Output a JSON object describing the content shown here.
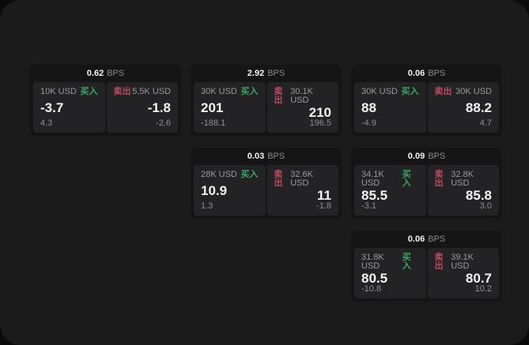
{
  "labels": {
    "buy": "买入",
    "sell": "卖出",
    "bps": "BPS"
  },
  "colors": {
    "buy": "#3aa763",
    "sell": "#bd4a62",
    "panel_bg": "#1b1b1c",
    "card_bg": "#151516",
    "tile_bg": "#232325",
    "value_text": "#f5f5f5",
    "muted_text": "#8f8f8f"
  },
  "cards": [
    {
      "bps": "0.62",
      "buy": {
        "size": "10K USD",
        "value": "-3.7",
        "delta": "4.3"
      },
      "sell": {
        "size": "5.5K USD",
        "value": "-1.8",
        "delta": "-2.6"
      }
    },
    {
      "bps": "2.92",
      "buy": {
        "size": "30K USD",
        "value": "201",
        "delta": "-188.1"
      },
      "sell": {
        "size": "30.1K USD",
        "value": "210",
        "delta": "196.5"
      }
    },
    {
      "bps": "0.06",
      "buy": {
        "size": "30K USD",
        "value": "88",
        "delta": "-4.9"
      },
      "sell": {
        "size": "30K USD",
        "value": "88.2",
        "delta": "4.7"
      }
    },
    {
      "bps": "0.03",
      "buy": {
        "size": "28K USD",
        "value": "10.9",
        "delta": "1.3"
      },
      "sell": {
        "size": "32.6K USD",
        "value": "11",
        "delta": "-1.8"
      }
    },
    {
      "bps": "0.09",
      "buy": {
        "size": "34.1K USD",
        "value": "85.5",
        "delta": "-3.1"
      },
      "sell": {
        "size": "32.8K USD",
        "value": "85.8",
        "delta": "3.0"
      }
    },
    {
      "bps": "0.06",
      "buy": {
        "size": "31.8K USD",
        "value": "80.5",
        "delta": "-10.8"
      },
      "sell": {
        "size": "39.1K USD",
        "value": "80.7",
        "delta": "10.2"
      }
    }
  ]
}
